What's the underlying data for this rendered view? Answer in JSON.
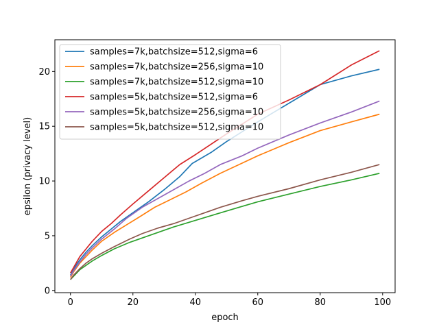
{
  "chart_data": {
    "type": "line",
    "title": "",
    "xlabel": "epoch",
    "ylabel": "epsilon (privacy level)",
    "xlim": [
      -5,
      104
    ],
    "ylim": [
      -0.2,
      22.9
    ],
    "xticks": [
      0,
      20,
      40,
      60,
      80,
      100
    ],
    "yticks": [
      0,
      5,
      10,
      15,
      20
    ],
    "grid": false,
    "legend_position": "upper-left",
    "series": [
      {
        "name": "samples=7k,batchsize=512,sigma=6",
        "color": "#1f77b4",
        "x": [
          0,
          1,
          2,
          3,
          5,
          7,
          10,
          13,
          16,
          19,
          22,
          25,
          30,
          35,
          39,
          45,
          50,
          55,
          60,
          70,
          80,
          90,
          99
        ],
        "y": [
          1.4,
          1.9,
          2.4,
          2.8,
          3.5,
          4.1,
          4.9,
          5.6,
          6.3,
          6.9,
          7.5,
          8.1,
          9.2,
          10.4,
          11.6,
          12.6,
          13.6,
          14.5,
          15.4,
          17.1,
          18.8,
          19.6,
          20.2
        ]
      },
      {
        "name": "samples=7k,batchsize=256,sigma=10",
        "color": "#ff7f0e",
        "x": [
          0,
          1,
          2,
          3,
          5,
          7,
          10,
          14,
          18,
          22,
          27,
          32,
          37,
          42,
          48,
          54,
          60,
          70,
          80,
          90,
          99
        ],
        "y": [
          1.2,
          1.7,
          2.1,
          2.5,
          3.1,
          3.7,
          4.5,
          5.3,
          6.0,
          6.7,
          7.6,
          8.3,
          9.0,
          9.8,
          10.7,
          11.5,
          12.3,
          13.5,
          14.6,
          15.4,
          16.1
        ]
      },
      {
        "name": "samples=7k,batchsize=512,sigma=10",
        "color": "#2ca02c",
        "x": [
          0,
          1,
          2,
          3,
          5,
          7,
          10,
          14,
          19,
          24,
          29,
          33,
          40,
          47,
          54,
          60,
          70,
          80,
          90,
          99
        ],
        "y": [
          1.0,
          1.3,
          1.6,
          1.9,
          2.3,
          2.7,
          3.2,
          3.8,
          4.4,
          4.9,
          5.4,
          5.8,
          6.4,
          7.0,
          7.6,
          8.1,
          8.8,
          9.5,
          10.1,
          10.7
        ]
      },
      {
        "name": "samples=5k,batchsize=512,sigma=6",
        "color": "#d62728",
        "x": [
          0,
          1,
          2,
          3,
          5,
          7,
          10,
          13,
          16,
          20,
          25,
          30,
          35,
          40,
          50,
          60,
          70,
          80,
          90,
          99
        ],
        "y": [
          1.6,
          2.1,
          2.6,
          3.1,
          3.8,
          4.5,
          5.4,
          6.1,
          6.9,
          7.9,
          9.1,
          10.3,
          11.5,
          12.4,
          14.3,
          16.1,
          17.4,
          18.8,
          20.6,
          21.9
        ]
      },
      {
        "name": "samples=5k,batchsize=256,sigma=10",
        "color": "#9467bd",
        "x": [
          0,
          1,
          2,
          3,
          5,
          7,
          10,
          14,
          18,
          23,
          28,
          33,
          38,
          43,
          48,
          55,
          60,
          70,
          80,
          90,
          99
        ],
        "y": [
          1.3,
          1.8,
          2.2,
          2.6,
          3.3,
          3.9,
          4.7,
          5.6,
          6.6,
          7.6,
          8.4,
          9.2,
          10.0,
          10.7,
          11.5,
          12.3,
          13.0,
          14.2,
          15.3,
          16.3,
          17.3
        ]
      },
      {
        "name": "samples=5k,batchsize=512,sigma=10",
        "color": "#8c564b",
        "x": [
          0,
          1,
          2,
          3,
          5,
          7,
          10,
          14,
          19,
          23,
          28,
          33,
          38,
          43,
          48,
          55,
          60,
          70,
          80,
          90,
          99
        ],
        "y": [
          1.0,
          1.4,
          1.7,
          2.0,
          2.5,
          2.9,
          3.4,
          4.0,
          4.7,
          5.2,
          5.7,
          6.1,
          6.6,
          7.1,
          7.6,
          8.2,
          8.6,
          9.3,
          10.1,
          10.8,
          11.5
        ]
      }
    ]
  }
}
